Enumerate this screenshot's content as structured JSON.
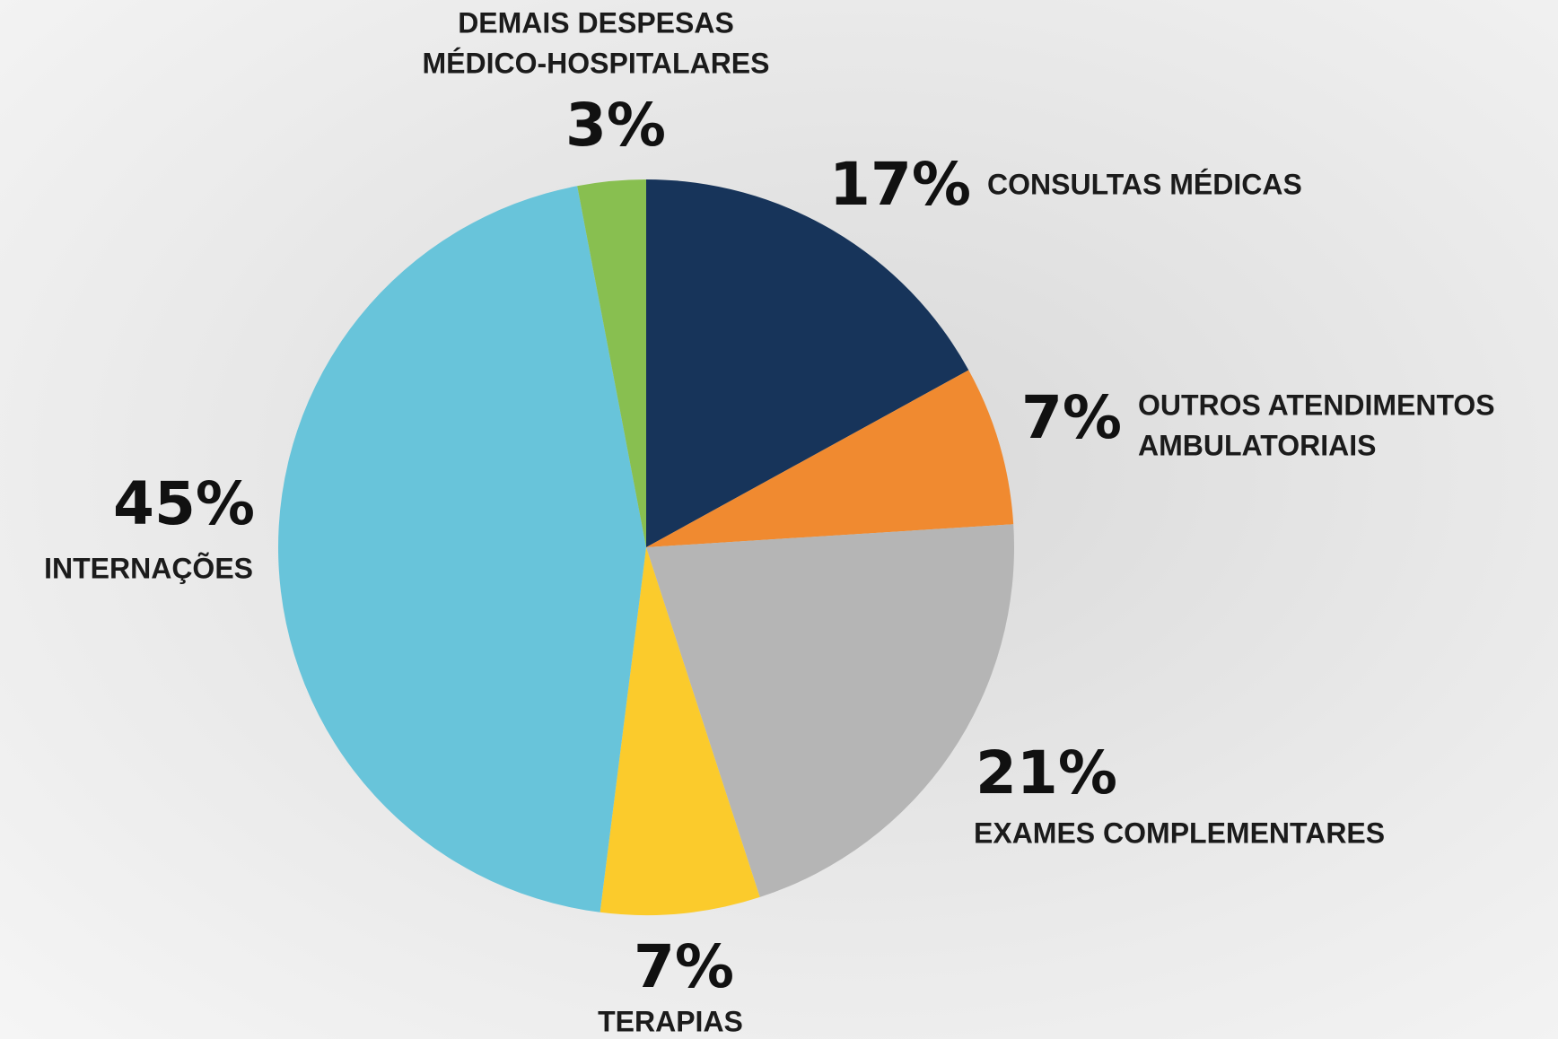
{
  "chart_data": {
    "type": "pie",
    "categories": [
      [
        "CONSULTAS MÉDICAS"
      ],
      [
        "OUTROS ATENDIMENTOS",
        "AMBULATORIAIS"
      ],
      [
        "EXAMES COMPLEMENTARES"
      ],
      [
        "TERAPIAS"
      ],
      [
        "INTERNAÇÕES"
      ],
      [
        "DEMAIS DESPESAS",
        "MÉDICO-HOSPITALARES"
      ]
    ],
    "values": [
      17,
      7,
      21,
      7,
      45,
      3
    ],
    "value_labels": [
      "17%",
      "7%",
      "21%",
      "7%",
      "45%",
      "3%"
    ],
    "colors": [
      "#17345a",
      "#f08a30",
      "#b5b5b5",
      "#fbcb2c",
      "#68c4da",
      "#88bf50"
    ]
  }
}
